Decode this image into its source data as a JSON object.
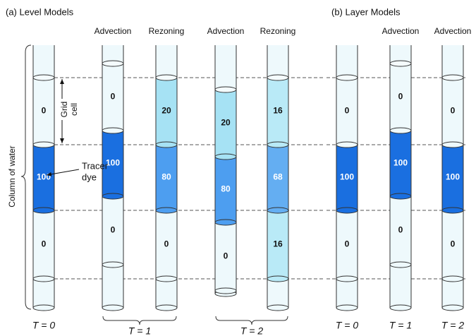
{
  "panel_a": {
    "title": "(a) Level Models"
  },
  "panel_b": {
    "title": "(b) Layer Models"
  },
  "columns": [
    {
      "cells": [
        {
          "value": 0,
          "color": "#eef9fc"
        },
        {
          "value": 100,
          "color": "#1a6fe0"
        },
        {
          "value": 0,
          "color": "#eef9fc"
        }
      ]
    },
    {
      "header": "Advection",
      "cells": [
        {
          "value": 0,
          "color": "#eef9fc"
        },
        {
          "value": 100,
          "color": "#1a6fe0"
        },
        {
          "value": 0,
          "color": "#eef9fc"
        }
      ]
    },
    {
      "header": "Rezoning",
      "cells": [
        {
          "value": 20,
          "color": "#a6e2f4"
        },
        {
          "value": 80,
          "color": "#4d9ef0"
        },
        {
          "value": 0,
          "color": "#eef9fc"
        }
      ]
    },
    {
      "header": "Advection",
      "cells": [
        {
          "value": 20,
          "color": "#a6e2f4"
        },
        {
          "value": 80,
          "color": "#4d9ef0"
        },
        {
          "value": 0,
          "color": "#eef9fc"
        }
      ]
    },
    {
      "header": "Rezoning",
      "cells": [
        {
          "value": 16,
          "color": "#b9eaf7"
        },
        {
          "value": 68,
          "color": "#64aef2"
        },
        {
          "value": 16,
          "color": "#b9eaf7"
        }
      ]
    },
    {
      "cells": [
        {
          "value": 0,
          "color": "#eef9fc"
        },
        {
          "value": 100,
          "color": "#1a6fe0"
        },
        {
          "value": 0,
          "color": "#eef9fc"
        }
      ]
    },
    {
      "header": "Advection",
      "cells": [
        {
          "value": 0,
          "color": "#eef9fc"
        },
        {
          "value": 100,
          "color": "#1a6fe0"
        },
        {
          "value": 0,
          "color": "#eef9fc"
        }
      ]
    },
    {
      "header": "Advection",
      "cells": [
        {
          "value": 0,
          "color": "#eef9fc"
        },
        {
          "value": 100,
          "color": "#1a6fe0"
        },
        {
          "value": 0,
          "color": "#eef9fc"
        }
      ]
    }
  ],
  "time_labels": [
    "T = 0",
    "T = 1",
    "T = 2",
    "T = 0",
    "T = 1",
    "T = 2"
  ],
  "annotations": {
    "column_of_water": "Column of water",
    "grid_cell": [
      "Grid",
      "cell"
    ],
    "tracer_dye": [
      "Tracer",
      "dye"
    ]
  }
}
